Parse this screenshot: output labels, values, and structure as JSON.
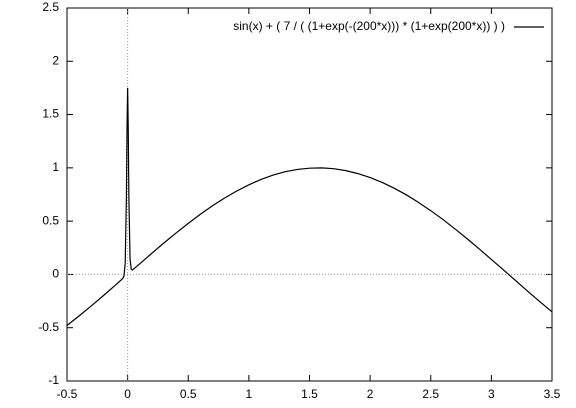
{
  "chart_data": {
    "type": "line",
    "series": [
      {
        "name": "sin(x) + ( 7 / ( (1+exp(-(200*x))) * (1+exp(200*x)) ) )",
        "color": "#000000",
        "x": [
          -0.5,
          -0.4,
          -0.3,
          -0.2,
          -0.1,
          -0.04,
          -0.03,
          -0.02,
          -0.01,
          -0.005,
          0,
          0.005,
          0.01,
          0.02,
          0.03,
          0.04,
          0.1,
          0.2,
          0.3,
          0.4,
          0.5,
          0.6,
          0.7,
          0.8,
          0.9,
          1.0,
          1.1,
          1.2,
          1.3,
          1.4,
          1.5,
          1.6,
          1.7,
          1.8,
          1.9,
          2.0,
          2.1,
          2.2,
          2.3,
          2.4,
          2.5,
          2.6,
          2.7,
          2.8,
          2.9,
          3.0,
          3.1,
          3.2,
          3.3,
          3.4,
          3.5
        ],
        "values": [
          -0.479,
          -0.389,
          -0.296,
          -0.199,
          -0.1,
          -0.038,
          -0.013,
          0.104,
          0.725,
          1.371,
          1.75,
          1.381,
          0.745,
          0.144,
          0.047,
          0.042,
          0.1,
          0.199,
          0.296,
          0.389,
          0.479,
          0.565,
          0.644,
          0.717,
          0.783,
          0.841,
          0.891,
          0.932,
          0.964,
          0.985,
          0.997,
          1.0,
          0.992,
          0.974,
          0.946,
          0.909,
          0.863,
          0.808,
          0.746,
          0.675,
          0.598,
          0.516,
          0.427,
          0.335,
          0.239,
          0.141,
          0.042,
          -0.058,
          -0.158,
          -0.256,
          -0.351
        ]
      }
    ],
    "xlim": [
      -0.5,
      3.5
    ],
    "xticks": [
      -0.5,
      0,
      0.5,
      1,
      1.5,
      2,
      2.5,
      3,
      3.5
    ],
    "ylim": [
      -1,
      2.5
    ],
    "yticks": [
      -1,
      -0.5,
      0,
      0.5,
      1,
      1.5,
      2,
      2.5
    ],
    "zeroaxis": true,
    "legend": "top-right"
  }
}
